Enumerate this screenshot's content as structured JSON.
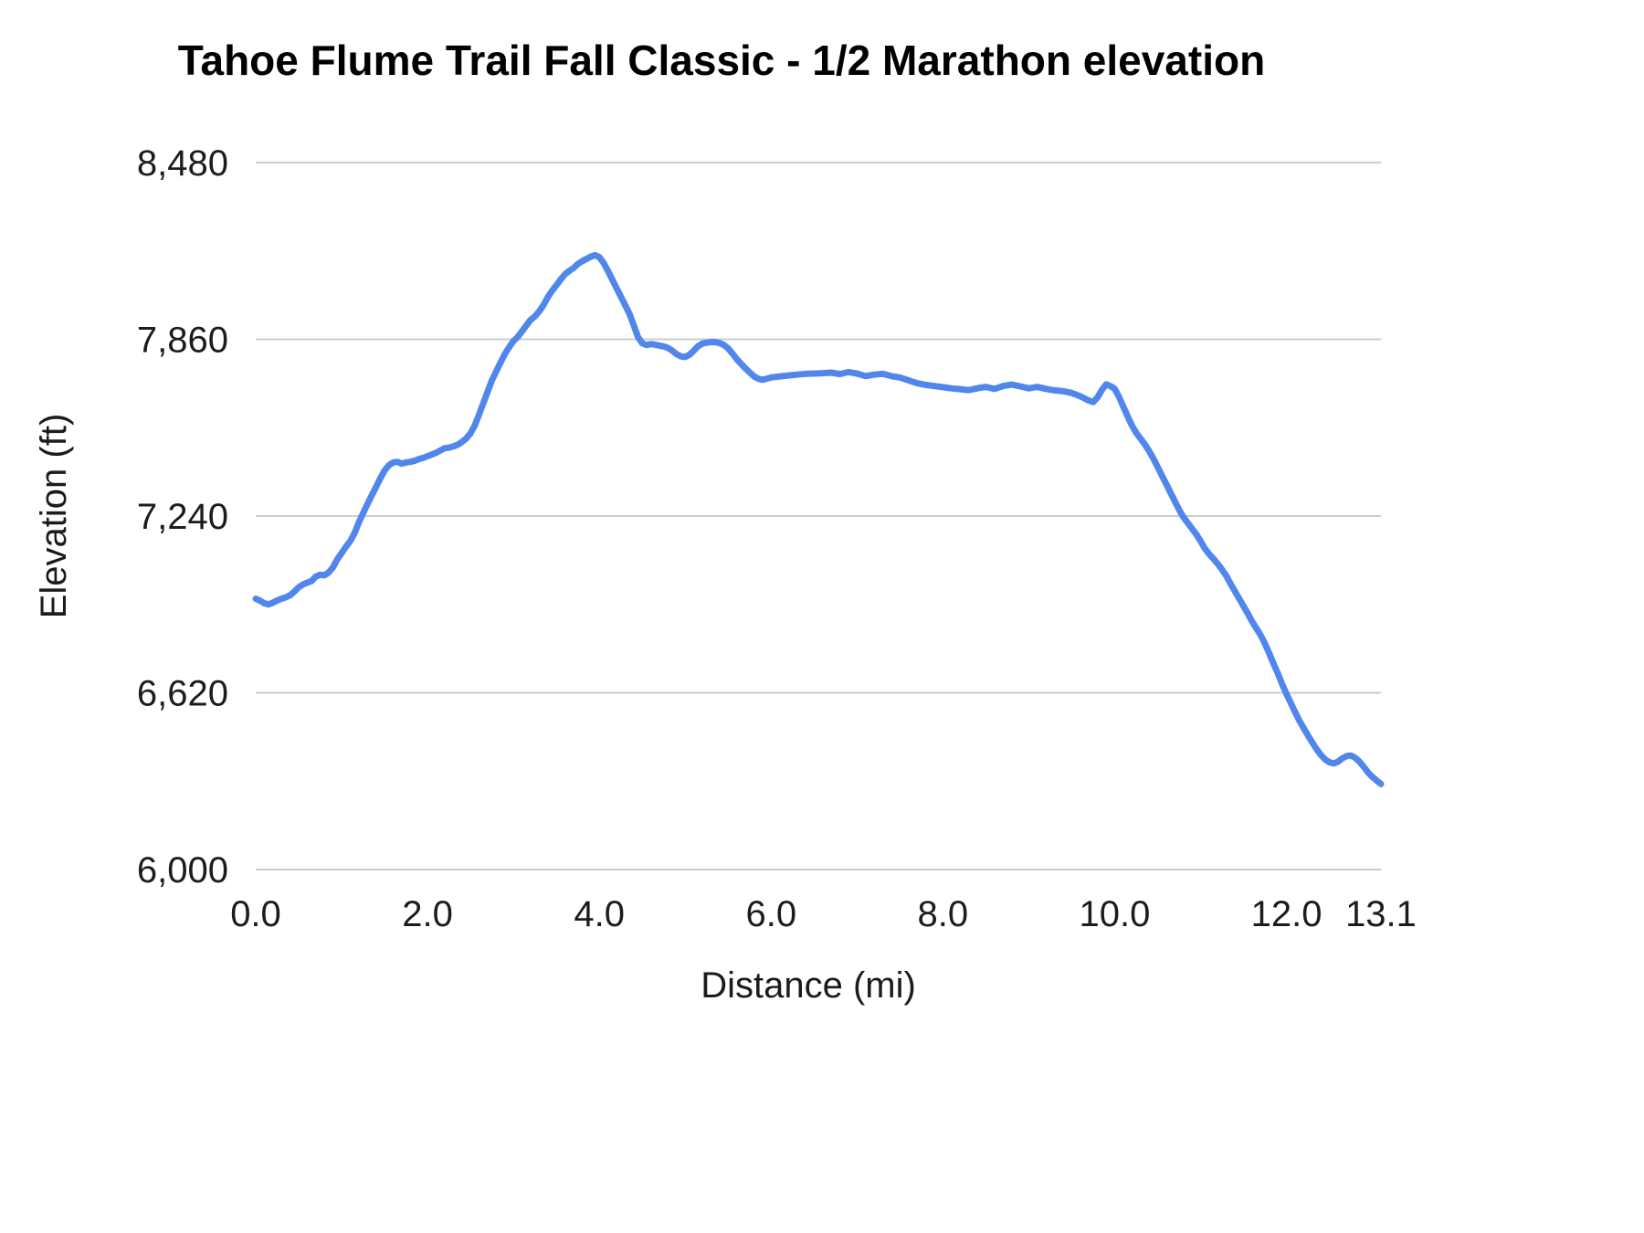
{
  "chart_data": {
    "type": "line",
    "title": "Tahoe Flume Trail Fall Classic - 1/2 Marathon elevation",
    "xlabel": "Distance (mi)",
    "ylabel": "Elevation (ft)",
    "xlim": [
      0,
      13.1
    ],
    "ylim": [
      6000,
      8480
    ],
    "grid": "horizontal",
    "legend": "none",
    "line_color": "#5187ec",
    "gridline_color": "#cccccc",
    "yticks": [
      {
        "value": 6000,
        "label": "6,000"
      },
      {
        "value": 6620,
        "label": "6,620"
      },
      {
        "value": 7240,
        "label": "7,240"
      },
      {
        "value": 7860,
        "label": "7,860"
      },
      {
        "value": 8480,
        "label": "8,480"
      }
    ],
    "xticks": [
      {
        "value": 0,
        "label": "0.0"
      },
      {
        "value": 2,
        "label": "2.0"
      },
      {
        "value": 4,
        "label": "4.0"
      },
      {
        "value": 6,
        "label": "6.0"
      },
      {
        "value": 8,
        "label": "8.0"
      },
      {
        "value": 10,
        "label": "10.0"
      },
      {
        "value": 12,
        "label": "12.0"
      },
      {
        "value": 13.1,
        "label": "13.1"
      }
    ],
    "series": [
      {
        "name": "Elevation",
        "points": [
          [
            0,
            6950
          ],
          [
            0.05,
            6943
          ],
          [
            0.1,
            6934
          ],
          [
            0.15,
            6930
          ],
          [
            0.2,
            6936
          ],
          [
            0.25,
            6944
          ],
          [
            0.3,
            6950
          ],
          [
            0.35,
            6955
          ],
          [
            0.4,
            6962
          ],
          [
            0.45,
            6975
          ],
          [
            0.5,
            6990
          ],
          [
            0.55,
            7000
          ],
          [
            0.6,
            7006
          ],
          [
            0.65,
            7012
          ],
          [
            0.7,
            7028
          ],
          [
            0.75,
            7034
          ],
          [
            0.8,
            7032
          ],
          [
            0.85,
            7042
          ],
          [
            0.9,
            7060
          ],
          [
            0.95,
            7088
          ],
          [
            1,
            7110
          ],
          [
            1.05,
            7132
          ],
          [
            1.1,
            7152
          ],
          [
            1.15,
            7180
          ],
          [
            1.2,
            7218
          ],
          [
            1.25,
            7250
          ],
          [
            1.3,
            7282
          ],
          [
            1.35,
            7312
          ],
          [
            1.4,
            7342
          ],
          [
            1.45,
            7372
          ],
          [
            1.5,
            7400
          ],
          [
            1.55,
            7418
          ],
          [
            1.6,
            7428
          ],
          [
            1.65,
            7430
          ],
          [
            1.7,
            7424
          ],
          [
            1.75,
            7428
          ],
          [
            1.8,
            7430
          ],
          [
            1.85,
            7434
          ],
          [
            1.9,
            7440
          ],
          [
            1.95,
            7444
          ],
          [
            2,
            7450
          ],
          [
            2.05,
            7456
          ],
          [
            2.1,
            7462
          ],
          [
            2.15,
            7470
          ],
          [
            2.2,
            7478
          ],
          [
            2.25,
            7480
          ],
          [
            2.3,
            7484
          ],
          [
            2.35,
            7490
          ],
          [
            2.4,
            7500
          ],
          [
            2.45,
            7512
          ],
          [
            2.5,
            7530
          ],
          [
            2.55,
            7558
          ],
          [
            2.6,
            7596
          ],
          [
            2.65,
            7636
          ],
          [
            2.7,
            7676
          ],
          [
            2.75,
            7716
          ],
          [
            2.8,
            7748
          ],
          [
            2.85,
            7778
          ],
          [
            2.9,
            7808
          ],
          [
            2.95,
            7832
          ],
          [
            3,
            7854
          ],
          [
            3.05,
            7868
          ],
          [
            3.1,
            7888
          ],
          [
            3.15,
            7908
          ],
          [
            3.2,
            7928
          ],
          [
            3.25,
            7940
          ],
          [
            3.3,
            7958
          ],
          [
            3.35,
            7980
          ],
          [
            3.4,
            8008
          ],
          [
            3.45,
            8030
          ],
          [
            3.5,
            8050
          ],
          [
            3.55,
            8070
          ],
          [
            3.6,
            8088
          ],
          [
            3.65,
            8100
          ],
          [
            3.7,
            8110
          ],
          [
            3.75,
            8124
          ],
          [
            3.8,
            8134
          ],
          [
            3.85,
            8142
          ],
          [
            3.9,
            8150
          ],
          [
            3.95,
            8155
          ],
          [
            4,
            8148
          ],
          [
            4.05,
            8128
          ],
          [
            4.1,
            8100
          ],
          [
            4.15,
            8070
          ],
          [
            4.2,
            8040
          ],
          [
            4.25,
            8010
          ],
          [
            4.3,
            7980
          ],
          [
            4.35,
            7950
          ],
          [
            4.4,
            7910
          ],
          [
            4.45,
            7868
          ],
          [
            4.5,
            7846
          ],
          [
            4.55,
            7840
          ],
          [
            4.6,
            7843
          ],
          [
            4.65,
            7841
          ],
          [
            4.7,
            7838
          ],
          [
            4.75,
            7835
          ],
          [
            4.8,
            7830
          ],
          [
            4.85,
            7820
          ],
          [
            4.9,
            7808
          ],
          [
            4.95,
            7800
          ],
          [
            5,
            7798
          ],
          [
            5.05,
            7806
          ],
          [
            5.1,
            7820
          ],
          [
            5.15,
            7836
          ],
          [
            5.2,
            7845
          ],
          [
            5.25,
            7848
          ],
          [
            5.3,
            7850
          ],
          [
            5.35,
            7850
          ],
          [
            5.4,
            7847
          ],
          [
            5.45,
            7840
          ],
          [
            5.5,
            7828
          ],
          [
            5.55,
            7810
          ],
          [
            5.6,
            7790
          ],
          [
            5.65,
            7774
          ],
          [
            5.7,
            7758
          ],
          [
            5.75,
            7744
          ],
          [
            5.8,
            7730
          ],
          [
            5.85,
            7722
          ],
          [
            5.9,
            7718
          ],
          [
            5.95,
            7722
          ],
          [
            6,
            7726
          ],
          [
            6.1,
            7730
          ],
          [
            6.2,
            7733
          ],
          [
            6.3,
            7736
          ],
          [
            6.4,
            7739
          ],
          [
            6.5,
            7740
          ],
          [
            6.6,
            7741
          ],
          [
            6.7,
            7743
          ],
          [
            6.8,
            7738
          ],
          [
            6.9,
            7745
          ],
          [
            7,
            7740
          ],
          [
            7.1,
            7731
          ],
          [
            7.2,
            7736
          ],
          [
            7.3,
            7739
          ],
          [
            7.4,
            7731
          ],
          [
            7.5,
            7726
          ],
          [
            7.6,
            7716
          ],
          [
            7.7,
            7706
          ],
          [
            7.8,
            7700
          ],
          [
            7.9,
            7696
          ],
          [
            8,
            7692
          ],
          [
            8.1,
            7688
          ],
          [
            8.2,
            7685
          ],
          [
            8.3,
            7682
          ],
          [
            8.4,
            7688
          ],
          [
            8.5,
            7693
          ],
          [
            8.6,
            7686
          ],
          [
            8.7,
            7696
          ],
          [
            8.8,
            7701
          ],
          [
            8.9,
            7695
          ],
          [
            9,
            7688
          ],
          [
            9.1,
            7693
          ],
          [
            9.2,
            7686
          ],
          [
            9.3,
            7681
          ],
          [
            9.4,
            7678
          ],
          [
            9.5,
            7672
          ],
          [
            9.6,
            7660
          ],
          [
            9.7,
            7645
          ],
          [
            9.75,
            7640
          ],
          [
            9.8,
            7656
          ],
          [
            9.85,
            7682
          ],
          [
            9.9,
            7702
          ],
          [
            9.95,
            7696
          ],
          [
            10,
            7686
          ],
          [
            10.05,
            7658
          ],
          [
            10.1,
            7624
          ],
          [
            10.15,
            7590
          ],
          [
            10.2,
            7558
          ],
          [
            10.25,
            7532
          ],
          [
            10.3,
            7512
          ],
          [
            10.35,
            7492
          ],
          [
            10.4,
            7468
          ],
          [
            10.45,
            7442
          ],
          [
            10.5,
            7412
          ],
          [
            10.55,
            7382
          ],
          [
            10.6,
            7352
          ],
          [
            10.65,
            7322
          ],
          [
            10.7,
            7292
          ],
          [
            10.75,
            7262
          ],
          [
            10.8,
            7236
          ],
          [
            10.85,
            7216
          ],
          [
            10.9,
            7196
          ],
          [
            10.95,
            7176
          ],
          [
            11,
            7152
          ],
          [
            11.05,
            7126
          ],
          [
            11.1,
            7106
          ],
          [
            11.15,
            7090
          ],
          [
            11.2,
            7072
          ],
          [
            11.25,
            7052
          ],
          [
            11.3,
            7030
          ],
          [
            11.35,
            7002
          ],
          [
            11.4,
            6976
          ],
          [
            11.45,
            6950
          ],
          [
            11.5,
            6924
          ],
          [
            11.55,
            6898
          ],
          [
            11.6,
            6870
          ],
          [
            11.65,
            6846
          ],
          [
            11.7,
            6822
          ],
          [
            11.75,
            6792
          ],
          [
            11.8,
            6758
          ],
          [
            11.85,
            6722
          ],
          [
            11.9,
            6688
          ],
          [
            11.95,
            6650
          ],
          [
            12,
            6616
          ],
          [
            12.05,
            6584
          ],
          [
            12.1,
            6552
          ],
          [
            12.15,
            6522
          ],
          [
            12.2,
            6496
          ],
          [
            12.25,
            6470
          ],
          [
            12.3,
            6446
          ],
          [
            12.35,
            6422
          ],
          [
            12.4,
            6402
          ],
          [
            12.45,
            6386
          ],
          [
            12.5,
            6376
          ],
          [
            12.55,
            6372
          ],
          [
            12.6,
            6378
          ],
          [
            12.65,
            6390
          ],
          [
            12.7,
            6398
          ],
          [
            12.75,
            6400
          ],
          [
            12.8,
            6392
          ],
          [
            12.85,
            6378
          ],
          [
            12.9,
            6360
          ],
          [
            12.95,
            6340
          ],
          [
            13,
            6325
          ],
          [
            13.05,
            6312
          ],
          [
            13.1,
            6300
          ]
        ]
      }
    ]
  }
}
